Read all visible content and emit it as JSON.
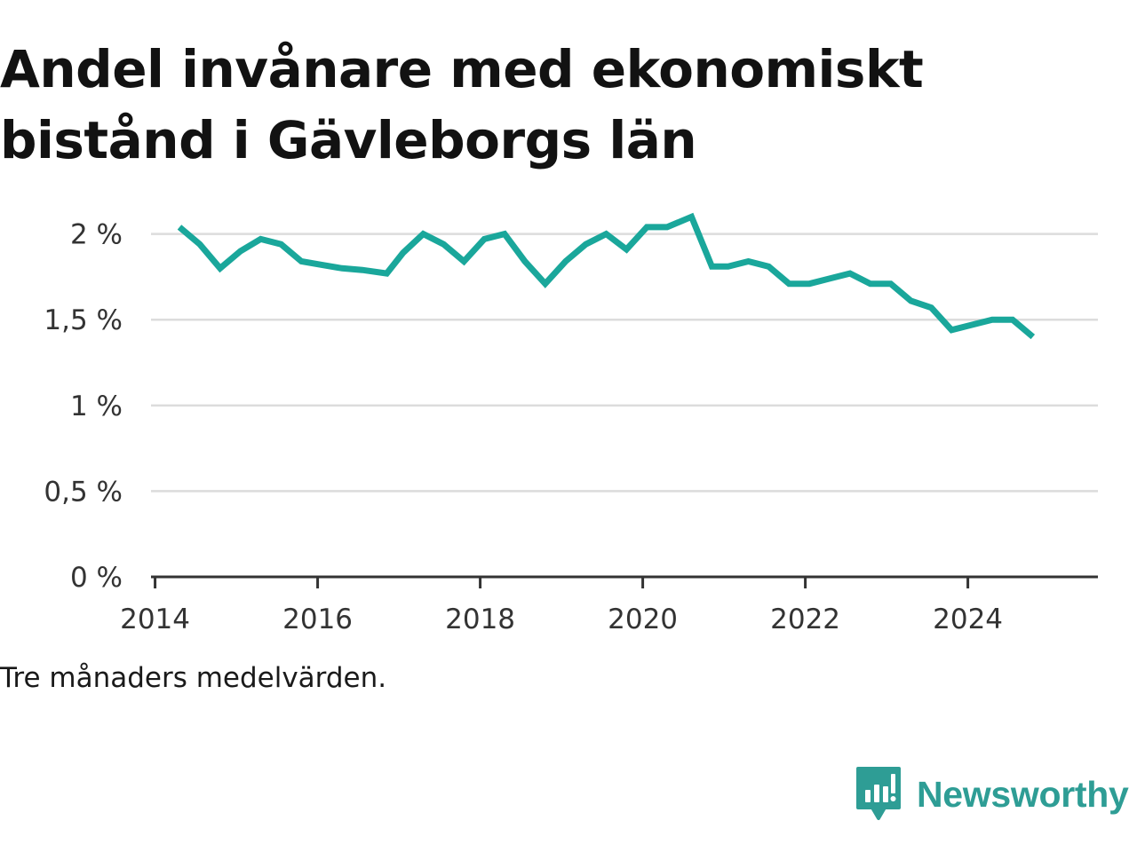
{
  "title": "Andel invånare med ekonomiskt bistånd i Gävleborgs län",
  "caption": "Tre månaders medelvärden.",
  "brand": {
    "name": "Newsworthy",
    "logo_icon": "bar-chart-speech-bubble-icon",
    "color": "#2e9d95"
  },
  "chart_data": {
    "type": "line",
    "title": "Andel invånare med ekonomiskt bistånd i Gävleborgs län",
    "xlabel": "",
    "ylabel": "",
    "xlim": [
      2013.95,
      2025.6
    ],
    "ylim": [
      0,
      2.2
    ],
    "grid": true,
    "line_color": "#1aa79b",
    "x_ticks": [
      2014,
      2016,
      2018,
      2020,
      2022,
      2024
    ],
    "x_tick_labels": [
      "2014",
      "2016",
      "2018",
      "2020",
      "2022",
      "2024"
    ],
    "y_ticks": [
      0,
      0.5,
      1,
      1.5,
      2
    ],
    "y_tick_labels": [
      "0 %",
      "0,5 %",
      "1 %",
      "1,5 %",
      "2 %"
    ],
    "series": [
      {
        "name": "",
        "x": [
          2014.3,
          2014.55,
          2014.8,
          2015.05,
          2015.3,
          2015.55,
          2015.8,
          2016.05,
          2016.3,
          2016.55,
          2016.85,
          2017.05,
          2017.3,
          2017.55,
          2017.8,
          2018.05,
          2018.3,
          2018.55,
          2018.8,
          2019.05,
          2019.3,
          2019.55,
          2019.8,
          2020.05,
          2020.3,
          2020.6,
          2020.85,
          2021.05,
          2021.3,
          2021.55,
          2021.8,
          2022.05,
          2022.3,
          2022.55,
          2022.8,
          2023.05,
          2023.3,
          2023.55,
          2023.8,
          2024.05,
          2024.3,
          2024.55,
          2024.8
        ],
        "y": [
          2.04,
          1.94,
          1.8,
          1.9,
          1.97,
          1.94,
          1.84,
          1.82,
          1.8,
          1.79,
          1.77,
          1.89,
          2.0,
          1.94,
          1.84,
          1.97,
          2.0,
          1.84,
          1.71,
          1.84,
          1.94,
          2.0,
          1.91,
          2.04,
          2.04,
          2.1,
          1.81,
          1.81,
          1.84,
          1.81,
          1.71,
          1.71,
          1.74,
          1.77,
          1.71,
          1.71,
          1.61,
          1.57,
          1.44,
          1.47,
          1.5,
          1.5,
          1.4
        ]
      }
    ]
  }
}
